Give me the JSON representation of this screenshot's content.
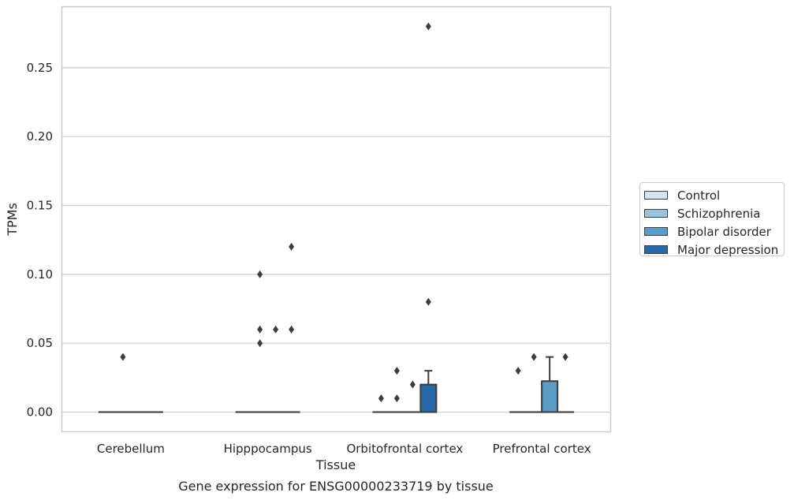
{
  "chart_data": {
    "type": "box",
    "title": "Gene expression for ENSG00000233719 by tissue",
    "xlabel": "Tissue",
    "ylabel": "TPMs",
    "categories": [
      "Cerebellum",
      "Hipppocampus",
      "Orbitofrontal cortex",
      "Prefrontal cortex"
    ],
    "ylim": [
      -0.014,
      0.294
    ],
    "yticks": [
      0.0,
      0.05,
      0.1,
      0.15,
      0.2,
      0.25
    ],
    "ytick_labels": [
      "0.00",
      "0.05",
      "0.10",
      "0.15",
      "0.20",
      "0.25"
    ],
    "grid": true,
    "legend_position": "right",
    "series": [
      {
        "name": "Control",
        "color": "#d4e3f0",
        "boxes": [
          {
            "category": "Cerebellum",
            "q1": 0.0,
            "median": 0.0,
            "q3": 0.0,
            "whisker_low": 0.0,
            "whisker_high": 0.0,
            "outliers": []
          },
          {
            "category": "Hipppocampus",
            "q1": 0.0,
            "median": 0.0,
            "q3": 0.0,
            "whisker_low": 0.0,
            "whisker_high": 0.0,
            "outliers": []
          },
          {
            "category": "Orbitofrontal cortex",
            "q1": 0.0,
            "median": 0.0,
            "q3": 0.0,
            "whisker_low": 0.0,
            "whisker_high": 0.0,
            "outliers": [
              0.01
            ]
          },
          {
            "category": "Prefrontal cortex",
            "q1": 0.0,
            "median": 0.0,
            "q3": 0.0,
            "whisker_low": 0.0,
            "whisker_high": 0.0,
            "outliers": [
              0.03
            ]
          }
        ]
      },
      {
        "name": "Schizophrenia",
        "color": "#9cc4de",
        "boxes": [
          {
            "category": "Cerebellum",
            "q1": 0.0,
            "median": 0.0,
            "q3": 0.0,
            "whisker_low": 0.0,
            "whisker_high": 0.0,
            "outliers": [
              0.04
            ]
          },
          {
            "category": "Hipppocampus",
            "q1": 0.0,
            "median": 0.0,
            "q3": 0.0,
            "whisker_low": 0.0,
            "whisker_high": 0.0,
            "outliers": [
              0.1,
              0.06,
              0.05
            ]
          },
          {
            "category": "Orbitofrontal cortex",
            "q1": 0.0,
            "median": 0.0,
            "q3": 0.0,
            "whisker_low": 0.0,
            "whisker_high": 0.0,
            "outliers": [
              0.03,
              0.01
            ]
          },
          {
            "category": "Prefrontal cortex",
            "q1": 0.0,
            "median": 0.0,
            "q3": 0.0,
            "whisker_low": 0.0,
            "whisker_high": 0.0,
            "outliers": [
              0.04
            ]
          }
        ]
      },
      {
        "name": "Bipolar disorder",
        "color": "#5a9bc8",
        "boxes": [
          {
            "category": "Cerebellum",
            "q1": 0.0,
            "median": 0.0,
            "q3": 0.0,
            "whisker_low": 0.0,
            "whisker_high": 0.0,
            "outliers": []
          },
          {
            "category": "Hipppocampus",
            "q1": 0.0,
            "median": 0.0,
            "q3": 0.0,
            "whisker_low": 0.0,
            "whisker_high": 0.0,
            "outliers": [
              0.06
            ]
          },
          {
            "category": "Orbitofrontal cortex",
            "q1": 0.0,
            "median": 0.0,
            "q3": 0.0,
            "whisker_low": 0.0,
            "whisker_high": 0.0,
            "outliers": [
              0.02
            ]
          },
          {
            "category": "Prefrontal cortex",
            "q1": 0.0,
            "median": 0.0,
            "q3": 0.0225,
            "whisker_low": 0.0,
            "whisker_high": 0.04,
            "outliers": []
          }
        ]
      },
      {
        "name": "Major depression",
        "color": "#2967a8",
        "boxes": [
          {
            "category": "Cerebellum",
            "q1": 0.0,
            "median": 0.0,
            "q3": 0.0,
            "whisker_low": 0.0,
            "whisker_high": 0.0,
            "outliers": []
          },
          {
            "category": "Hipppocampus",
            "q1": 0.0,
            "median": 0.0,
            "q3": 0.0,
            "whisker_low": 0.0,
            "whisker_high": 0.0,
            "outliers": [
              0.12,
              0.06
            ]
          },
          {
            "category": "Orbitofrontal cortex",
            "q1": 0.0,
            "median": 0.0,
            "q3": 0.02,
            "whisker_low": 0.0,
            "whisker_high": 0.03,
            "outliers": [
              0.28,
              0.08
            ]
          },
          {
            "category": "Prefrontal cortex",
            "q1": 0.0,
            "median": 0.0,
            "q3": 0.0,
            "whisker_low": 0.0,
            "whisker_high": 0.0,
            "outliers": [
              0.04
            ]
          }
        ]
      }
    ]
  }
}
